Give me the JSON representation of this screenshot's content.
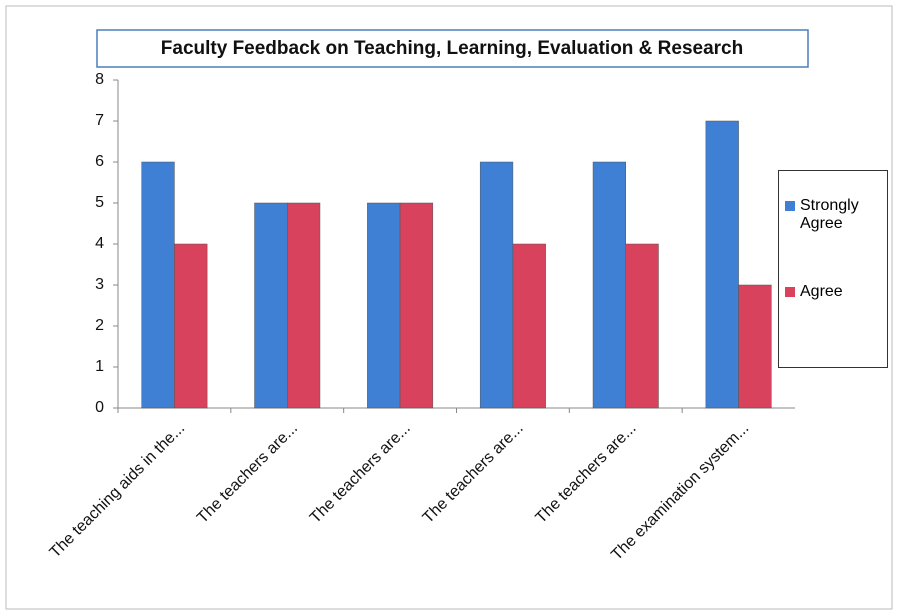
{
  "chart_data": {
    "type": "bar",
    "title": "Faculty Feedback on Teaching, Learning, Evaluation & Research",
    "categories": [
      "The teaching aids in the...",
      "The teachers are...",
      "The teachers are...",
      "The teachers are...",
      "The teachers are...",
      "The examination system..."
    ],
    "series": [
      {
        "name": "Strongly Agree",
        "color": "#3f7fd4",
        "values": [
          6,
          5,
          5,
          6,
          6,
          7
        ]
      },
      {
        "name": "Agree",
        "color": "#d8425c",
        "values": [
          4,
          5,
          5,
          4,
          4,
          3
        ]
      }
    ],
    "ylim": [
      0,
      8
    ],
    "yticks": [
      0,
      1,
      2,
      3,
      4,
      5,
      6,
      7,
      8
    ],
    "grid": false,
    "legend": "right"
  }
}
